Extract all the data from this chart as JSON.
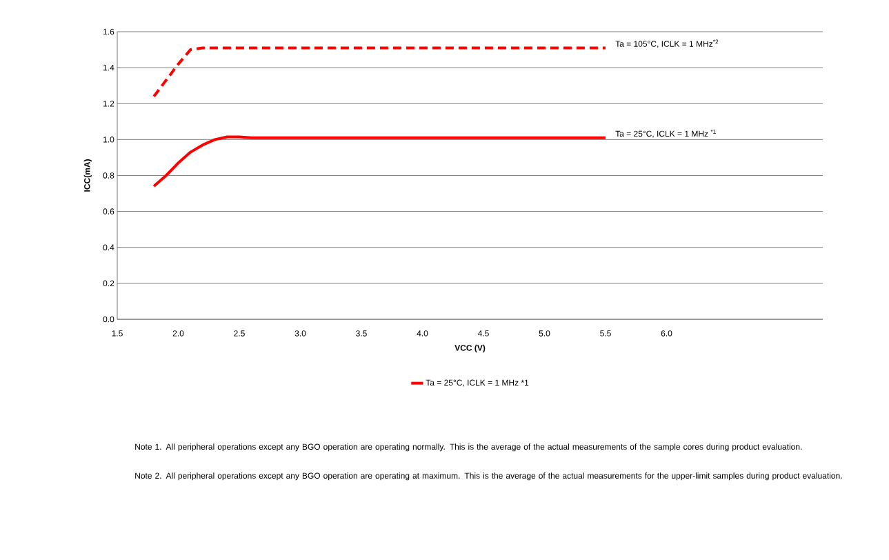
{
  "chart_data": {
    "type": "line",
    "xlabel": "VCC  (V)",
    "ylabel": "ICC(mA)",
    "xlim": [
      1.5,
      7.28
    ],
    "ylim": [
      0,
      1.6
    ],
    "xticks": [
      {
        "value": 1.5,
        "label": "1.5"
      },
      {
        "value": 2,
        "label": "2.0"
      },
      {
        "value": 2.5,
        "label": "2.5"
      },
      {
        "value": 3,
        "label": "3.0"
      },
      {
        "value": 3.5,
        "label": "3.5"
      },
      {
        "value": 4,
        "label": "4.0"
      },
      {
        "value": 4.5,
        "label": "4.5"
      },
      {
        "value": 5,
        "label": "5.0"
      },
      {
        "value": 5.5,
        "label": "5.5"
      },
      {
        "value": 6,
        "label": "6.0"
      }
    ],
    "yticks": [
      {
        "value": 0,
        "label": "0.0"
      },
      {
        "value": 0.2,
        "label": "0.2"
      },
      {
        "value": 0.4,
        "label": "0.4"
      },
      {
        "value": 0.6,
        "label": "0.6"
      },
      {
        "value": 0.8,
        "label": "0.8"
      },
      {
        "value": 1,
        "label": "1.0"
      },
      {
        "value": 1.2,
        "label": "1.2"
      },
      {
        "value": 1.4,
        "label": "1.4"
      },
      {
        "value": 1.6,
        "label": "1.6"
      }
    ],
    "grid": "y",
    "legend": "bottom",
    "series": [
      {
        "name": "Ta = 25°C, ICLK = 1 MHz *1",
        "color": "#ff0000",
        "line_style": "solid",
        "x": [
          1.8,
          1.9,
          2.0,
          2.1,
          2.2,
          2.3,
          2.4,
          2.5,
          2.6,
          5.5
        ],
        "values": [
          0.74,
          0.8,
          0.87,
          0.93,
          0.97,
          1.0,
          1.015,
          1.015,
          1.01,
          1.01
        ]
      },
      {
        "color": "#ff0000",
        "line_style": "dashed",
        "x": [
          1.8,
          1.9,
          2.0,
          2.1,
          2.2,
          5.5
        ],
        "values": [
          1.24,
          1.33,
          1.42,
          1.5,
          1.51,
          1.51
        ]
      }
    ],
    "annotations": [
      "Ta = 25°C, ICLK = 1 MHz $^{*1}$",
      "Ta = 105°C, ICLK = 1 MHz$^{*2}$",
      "Note 1. All peripheral operations except any BGO operation are operating normally. This is the average of the actual measurements of the sample cores during product evaluation.",
      "Note 2. All peripheral operations except any BGO operation are operating at maximum. This is the average of the actual measurements for the upper-limit samples during product evaluation."
    ]
  }
}
